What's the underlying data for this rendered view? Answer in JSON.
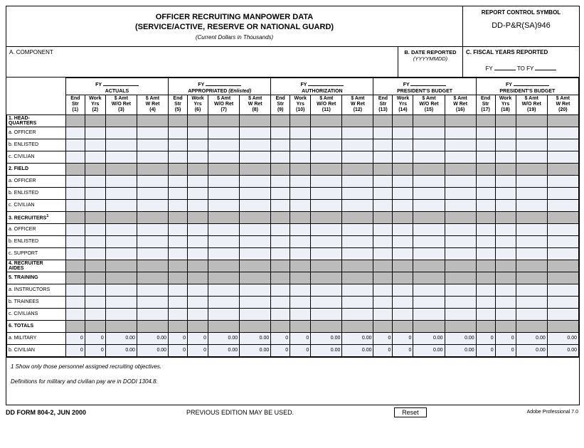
{
  "header": {
    "title_line1": "OFFICER RECRUITING MANPOWER DATA",
    "title_line2": "(SERVICE/ACTIVE, RESERVE OR NATIONAL GUARD)",
    "subtitle": "(Current Dollars in Thousands)",
    "report_symbol_label": "REPORT CONTROL SYMBOL",
    "report_symbol_value": "DD-P&R(SA)946",
    "component_label": "A.  COMPONENT",
    "date_label": "B. DATE REPORTED",
    "date_fmt": "(YYYYMMDD)",
    "fiscal_label": "C.  FISCAL YEARS REPORTED",
    "fy_prefix": "FY",
    "fy_to": "TO FY"
  },
  "groups": [
    {
      "top": "FY",
      "bot": "ACTUALS",
      "ital": false
    },
    {
      "top": "FY",
      "bot": "APPROPRIATED (Enlisted)",
      "ital": true
    },
    {
      "top": "FY",
      "bot": "AUTHORIZATION",
      "ital": false
    },
    {
      "top": "FY",
      "bot": "PRESIDENT'S BUDGET",
      "ital": false
    },
    {
      "top": "FY",
      "bot": "PRESIDENT'S BUDGET",
      "ital": false
    }
  ],
  "col_labels": {
    "end_str": "End\nStr",
    "work_yrs": "Work\nYrs",
    "amt_wo": "$ Amt\nW/O Ret",
    "amt_w": "$ Amt\nW Ret"
  },
  "rows": [
    {
      "label": "1.  HEAD-\n     QUARTERS",
      "type": "section",
      "gray": true
    },
    {
      "label": "a.  OFFICER",
      "type": "sub",
      "gray": false
    },
    {
      "label": "b.  ENLISTED",
      "type": "sub",
      "gray": false
    },
    {
      "label": "c.  CIVILIAN",
      "type": "sub",
      "gray": false
    },
    {
      "label": "2.  FIELD",
      "type": "section",
      "gray": true
    },
    {
      "label": "a.  OFFICER",
      "type": "sub",
      "gray": false
    },
    {
      "label": "b.  ENLISTED",
      "type": "sub",
      "gray": false
    },
    {
      "label": "c.  CIVILIAN",
      "type": "sub",
      "gray": false
    },
    {
      "label": "3.  RECRUITERS",
      "type": "section",
      "gray": true,
      "sup": "1"
    },
    {
      "label": "a.  OFFICER",
      "type": "sub",
      "gray": false
    },
    {
      "label": "b.  ENLISTED",
      "type": "sub",
      "gray": false
    },
    {
      "label": "c.  SUPPORT",
      "type": "sub",
      "gray": false
    },
    {
      "label": "4.  RECRUITER\n     AIDES",
      "type": "section",
      "gray": true
    },
    {
      "label": "5.  TRAINING",
      "type": "section",
      "gray": true
    },
    {
      "label": "a. INSTRUCTORS",
      "type": "sub",
      "gray": false
    },
    {
      "label": "b. TRAINEES",
      "type": "sub",
      "gray": false
    },
    {
      "label": "c. CIVILIANS",
      "type": "sub",
      "gray": false
    },
    {
      "label": "6.  TOTALS",
      "type": "section",
      "gray": true
    },
    {
      "label": "a.  MILITARY",
      "type": "sub",
      "gray": false,
      "totals": true
    },
    {
      "label": "b.  CIVILIAN",
      "type": "sub",
      "gray": false,
      "totals": true
    }
  ],
  "totals_values": {
    "int": "0",
    "dec": "0.00"
  },
  "notes": {
    "n1": "1  Show only those personnel assigned recruiting objectives.",
    "n2": "Definitions for military and civilian pay are in DODI 1304.8."
  },
  "footer": {
    "form_id": "DD FORM 804-2, JUN 2000",
    "prev": "PREVIOUS EDITION MAY BE USED.",
    "reset": "Reset",
    "adobe": "Adobe Professional 7.0"
  }
}
